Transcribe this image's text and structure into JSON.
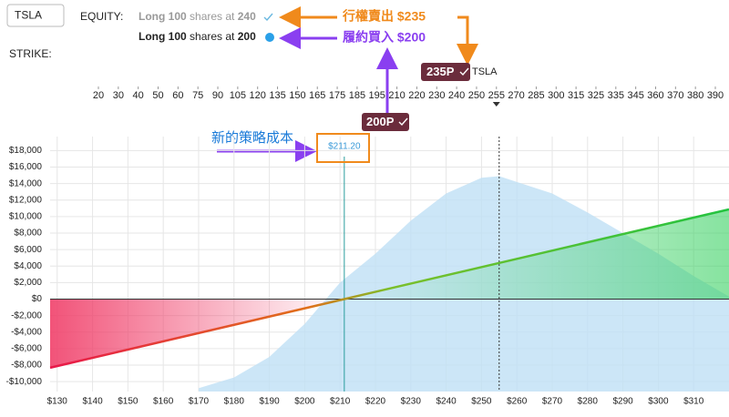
{
  "ticker_input": "TSLA",
  "equity_label": "EQUITY:",
  "positions": [
    [
      "Long 100",
      "shares at",
      "240"
    ],
    [
      "Long 100",
      "shares at",
      "200"
    ]
  ],
  "strike_label": "STRIKE:",
  "strike_ruler": {
    "ticks": [
      20,
      30,
      40,
      50,
      60,
      75,
      90,
      105,
      120,
      135,
      150,
      165,
      175,
      185,
      195,
      210,
      220,
      230,
      240,
      250,
      255,
      270,
      285,
      300,
      315,
      325,
      335,
      345,
      360,
      370,
      380,
      390
    ]
  },
  "strike_tags": [
    "235P",
    "200P"
  ],
  "underlying_tag": "TSLA",
  "annotations": {
    "sell": "行權賣出 $235",
    "buy": "履約買入 $200",
    "cost": "新的策略成本"
  },
  "chart_data": {
    "type": "line",
    "xlim": [
      128,
      320
    ],
    "ylim": [
      -11200,
      19700
    ],
    "xticks": [
      {
        "value": 130,
        "label": "$130"
      },
      {
        "value": 140,
        "label": "$140"
      },
      {
        "value": 150,
        "label": "$150"
      },
      {
        "value": 160,
        "label": "$160"
      },
      {
        "value": 170,
        "label": "$170"
      },
      {
        "value": 180,
        "label": "$180"
      },
      {
        "value": 190,
        "label": "$190"
      },
      {
        "value": 200,
        "label": "$200"
      },
      {
        "value": 210,
        "label": "$210"
      },
      {
        "value": 220,
        "label": "$220"
      },
      {
        "value": 230,
        "label": "$230"
      },
      {
        "value": 240,
        "label": "$240"
      },
      {
        "value": 250,
        "label": "$250"
      },
      {
        "value": 260,
        "label": "$260"
      },
      {
        "value": 270,
        "label": "$270"
      },
      {
        "value": 280,
        "label": "$280"
      },
      {
        "value": 290,
        "label": "$290"
      },
      {
        "value": 300,
        "label": "$300"
      },
      {
        "value": 310,
        "label": "$310"
      }
    ],
    "yticks": [
      {
        "value": -10000,
        "label": "-$10,000"
      },
      {
        "value": -8000,
        "label": "-$8,000"
      },
      {
        "value": -6000,
        "label": "-$6,000"
      },
      {
        "value": -4000,
        "label": "-$4,000"
      },
      {
        "value": -2000,
        "label": "-$2,000"
      },
      {
        "value": 0,
        "label": "$0"
      },
      {
        "value": 2000,
        "label": "$2,000"
      },
      {
        "value": 4000,
        "label": "$4,000"
      },
      {
        "value": 6000,
        "label": "$6,000"
      },
      {
        "value": 8000,
        "label": "$8,000"
      },
      {
        "value": 10000,
        "label": "$10,000"
      },
      {
        "value": 12000,
        "label": "$12,000"
      },
      {
        "value": 14000,
        "label": "$14,000"
      },
      {
        "value": 16000,
        "label": "$16,000"
      },
      {
        "value": 18000,
        "label": "$18,000"
      }
    ],
    "grid": true,
    "payoff": {
      "x": [
        128,
        211.2,
        320
      ],
      "values": [
        -8320,
        0,
        10880
      ]
    },
    "distribution": {
      "color": "#bfe0f5",
      "x": [
        170,
        180,
        190,
        200,
        210,
        220,
        230,
        240,
        250,
        255,
        260,
        270,
        280,
        290,
        300,
        310,
        320
      ],
      "values": [
        -10800,
        -9500,
        -7000,
        -3000,
        2000,
        5500,
        9500,
        12800,
        14700,
        14900,
        14200,
        12800,
        10500,
        8000,
        5500,
        2800,
        300
      ]
    },
    "breakeven": {
      "value": 211.2,
      "label": "$211.20"
    },
    "spot": 255
  }
}
